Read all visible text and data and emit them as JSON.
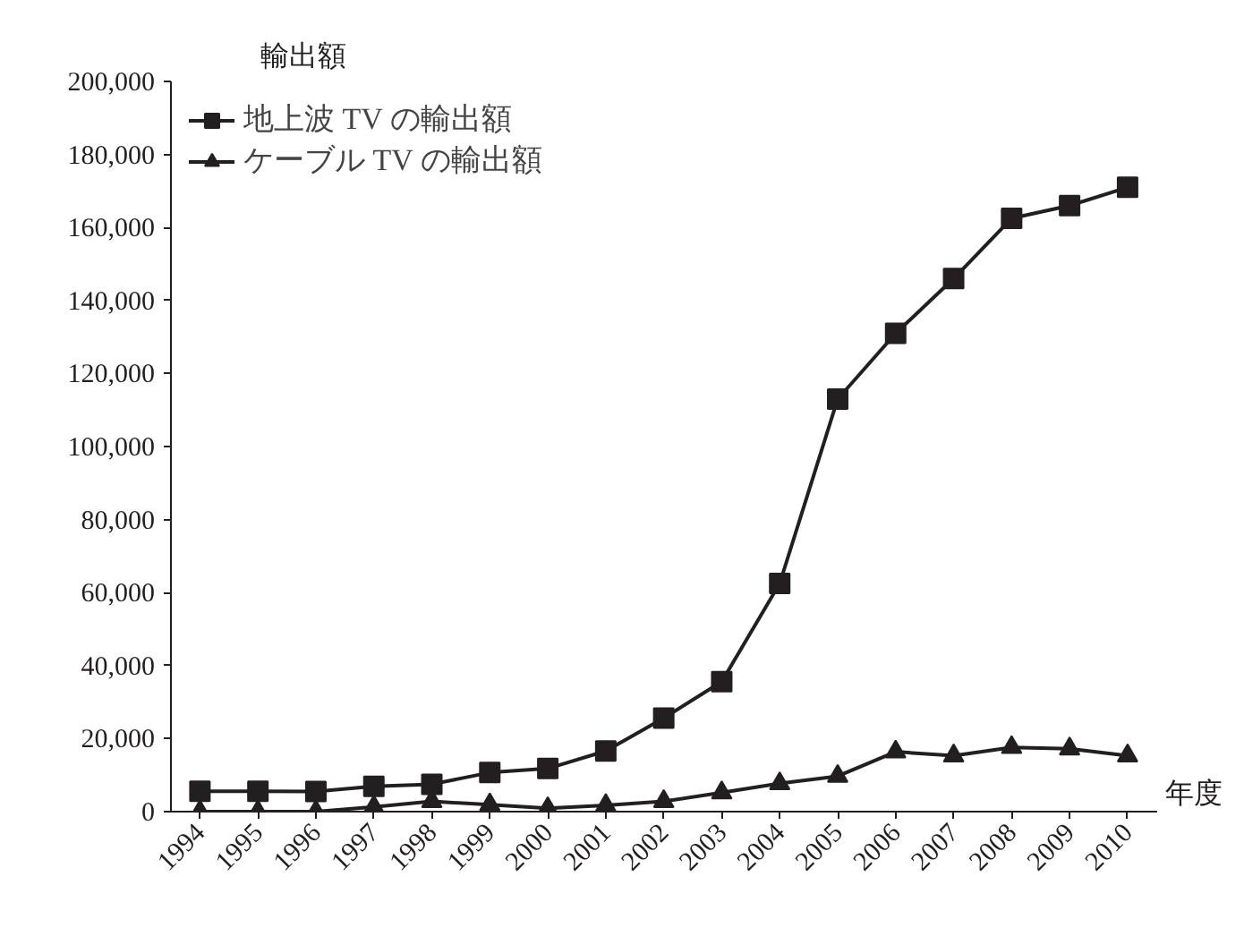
{
  "chart_data": {
    "type": "line",
    "xlabel": "年度",
    "ylabel": "輸出額",
    "categories": [
      "1994",
      "1995",
      "1996",
      "1997",
      "1998",
      "1999",
      "2000",
      "2001",
      "2002",
      "2003",
      "2004",
      "2005",
      "2006",
      "2007",
      "2008",
      "2009",
      "2010"
    ],
    "series": [
      {
        "name": "地上波 TV の輸出額",
        "color": "#231f20",
        "marker": "square",
        "values": [
          5600,
          5600,
          5500,
          6900,
          7500,
          10700,
          11800,
          16600,
          25600,
          35600,
          62500,
          113000,
          131000,
          146000,
          162500,
          166000,
          171000
        ]
      },
      {
        "name": "ケーブル TV の輸出額",
        "color": "#231f20",
        "marker": "triangle",
        "values": [
          0,
          0,
          0,
          1300,
          2800,
          1900,
          900,
          1700,
          2800,
          5200,
          7700,
          9700,
          16400,
          15300,
          17600,
          17200,
          15300
        ]
      }
    ],
    "ylim": [
      0,
      200000
    ],
    "yticks": [
      {
        "value": 0,
        "label": "0"
      },
      {
        "value": 20000,
        "label": "20,000"
      },
      {
        "value": 40000,
        "label": "40,000"
      },
      {
        "value": 60000,
        "label": "60,000"
      },
      {
        "value": 80000,
        "label": "80,000"
      },
      {
        "value": 100000,
        "label": "100,000"
      },
      {
        "value": 120000,
        "label": "120,000"
      },
      {
        "value": 140000,
        "label": "140,000"
      },
      {
        "value": 160000,
        "label": "160,000"
      },
      {
        "value": 180000,
        "label": "180,000"
      },
      {
        "value": 200000,
        "label": "200,000"
      }
    ],
    "grid": false,
    "legend": "top left",
    "line_style": "solid"
  }
}
